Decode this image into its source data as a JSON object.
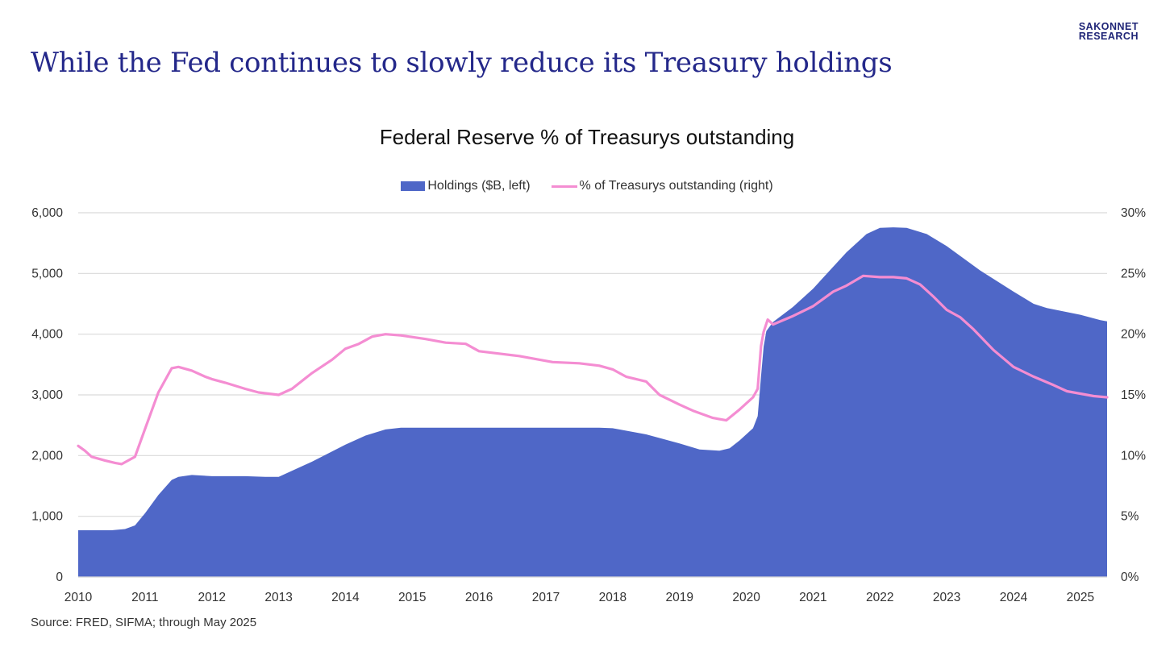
{
  "brand": {
    "line1": "SAKONNET",
    "line2": "RESEARCH",
    "color": "#1f2577"
  },
  "headline": "While the Fed continues to slowly reduce its Treasury holdings",
  "source": "Source: FRED, SIFMA; through May 2025",
  "chart_data": {
    "type": "area",
    "title": "Federal Reserve % of Treasurys outstanding",
    "legend": {
      "position": "top"
    },
    "grid": true,
    "x_range": [
      2010,
      2025.4
    ],
    "x_ticks": [
      "2010",
      "2011",
      "2012",
      "2013",
      "2014",
      "2015",
      "2016",
      "2017",
      "2018",
      "2019",
      "2020",
      "2021",
      "2022",
      "2023",
      "2024",
      "2025"
    ],
    "y_left": {
      "range": [
        0,
        6000
      ],
      "ticks": [
        "0",
        "1,000",
        "2,000",
        "3,000",
        "4,000",
        "5,000",
        "6,000"
      ]
    },
    "y_right": {
      "range": [
        0,
        30
      ],
      "ticks": [
        "0%",
        "5%",
        "10%",
        "15%",
        "20%",
        "25%",
        "30%"
      ]
    },
    "series": [
      {
        "name": "Holdings ($B, left)",
        "type": "area",
        "axis": "left",
        "color": "#4f67c7",
        "x": [
          2010.0,
          2010.5,
          2010.7,
          2010.85,
          2011.0,
          2011.2,
          2011.4,
          2011.5,
          2011.7,
          2012.0,
          2012.5,
          2012.8,
          2013.0,
          2013.5,
          2014.0,
          2014.3,
          2014.6,
          2014.83,
          2015.5,
          2016.5,
          2017.5,
          2017.8,
          2018.0,
          2018.5,
          2019.0,
          2019.3,
          2019.6,
          2019.75,
          2019.9,
          2020.1,
          2020.17,
          2020.22,
          2020.26,
          2020.3,
          2020.4,
          2020.7,
          2021.0,
          2021.5,
          2021.8,
          2022.0,
          2022.2,
          2022.4,
          2022.7,
          2023.0,
          2023.5,
          2024.0,
          2024.3,
          2024.5,
          2025.0,
          2025.3,
          2025.4
        ],
        "values": [
          770,
          770,
          790,
          850,
          1050,
          1350,
          1600,
          1650,
          1680,
          1660,
          1660,
          1650,
          1650,
          1900,
          2180,
          2330,
          2430,
          2460,
          2460,
          2460,
          2460,
          2460,
          2450,
          2350,
          2200,
          2100,
          2080,
          2120,
          2250,
          2450,
          2650,
          3300,
          3800,
          4050,
          4200,
          4450,
          4750,
          5350,
          5650,
          5750,
          5760,
          5750,
          5650,
          5450,
          5050,
          4700,
          4500,
          4430,
          4320,
          4230,
          4210
        ]
      },
      {
        "name": "% of Treasurys outstanding (right)",
        "type": "line",
        "axis": "right",
        "color": "#f48dd2",
        "x": [
          2010.0,
          2010.1,
          2010.2,
          2010.4,
          2010.55,
          2010.65,
          2010.75,
          2010.85,
          2011.0,
          2011.2,
          2011.4,
          2011.5,
          2011.7,
          2011.9,
          2012.0,
          2012.2,
          2012.5,
          2012.7,
          2013.0,
          2013.2,
          2013.5,
          2013.8,
          2014.0,
          2014.2,
          2014.4,
          2014.6,
          2014.83,
          2015.2,
          2015.5,
          2015.8,
          2016.0,
          2016.3,
          2016.6,
          2016.9,
          2017.1,
          2017.5,
          2017.8,
          2018.0,
          2018.2,
          2018.5,
          2018.7,
          2019.0,
          2019.2,
          2019.5,
          2019.7,
          2019.9,
          2020.1,
          2020.17,
          2020.22,
          2020.26,
          2020.32,
          2020.4,
          2020.7,
          2021.0,
          2021.3,
          2021.5,
          2021.75,
          2022.0,
          2022.2,
          2022.4,
          2022.6,
          2022.8,
          2023.0,
          2023.2,
          2023.4,
          2023.7,
          2024.0,
          2024.3,
          2024.6,
          2024.8,
          2025.0,
          2025.2,
          2025.4
        ],
        "values": [
          10.8,
          10.4,
          9.9,
          9.6,
          9.4,
          9.3,
          9.6,
          9.9,
          12.2,
          15.2,
          17.2,
          17.3,
          17.0,
          16.5,
          16.3,
          16.0,
          15.5,
          15.2,
          15.0,
          15.5,
          16.8,
          17.9,
          18.8,
          19.2,
          19.8,
          20.0,
          19.9,
          19.6,
          19.3,
          19.2,
          18.6,
          18.4,
          18.2,
          17.9,
          17.7,
          17.6,
          17.4,
          17.1,
          16.5,
          16.1,
          15.0,
          14.2,
          13.7,
          13.1,
          12.9,
          13.8,
          14.8,
          15.5,
          19.0,
          20.2,
          21.2,
          20.8,
          21.5,
          22.3,
          23.5,
          24.0,
          24.8,
          24.7,
          24.7,
          24.6,
          24.1,
          23.1,
          22.0,
          21.4,
          20.4,
          18.7,
          17.3,
          16.5,
          15.8,
          15.3,
          15.1,
          14.9,
          14.8
        ]
      }
    ]
  }
}
